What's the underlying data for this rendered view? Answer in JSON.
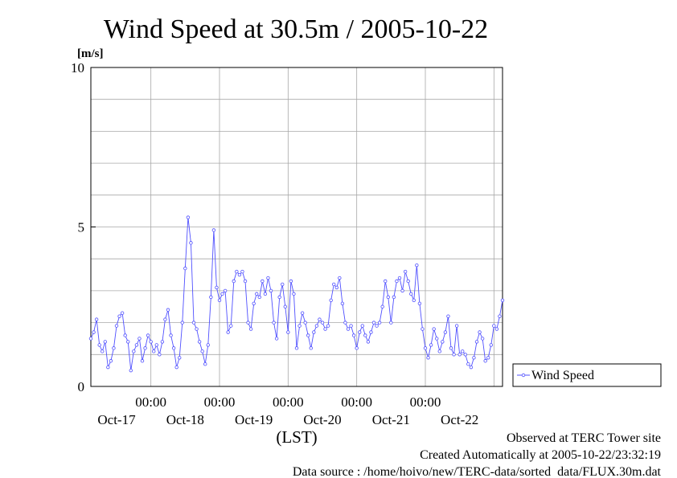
{
  "chart_data": {
    "type": "line",
    "title": "Wind Speed at 30.5m / 2005-10-22",
    "ylabel": "[m/s]",
    "xlabel": "(LST)",
    "ylim": [
      0,
      10
    ],
    "yticks": [
      "0",
      "5",
      "10"
    ],
    "xticks_time": [
      "00:00",
      "00:00",
      "00:00",
      "00:00",
      "00:00"
    ],
    "xticks_date": [
      "Oct-17",
      "Oct-18",
      "Oct-19",
      "Oct-20",
      "Oct-21",
      "Oct-22"
    ],
    "x_unit": "hours (LST)",
    "x_range_hours": [
      0,
      144
    ],
    "grid": true,
    "legend_position": "right",
    "series": [
      {
        "name": "Wind Speed",
        "color": "#5050ff",
        "x": [
          0,
          1,
          2,
          3,
          4,
          5,
          6,
          7,
          8,
          9,
          10,
          11,
          12,
          13,
          14,
          15,
          16,
          17,
          18,
          19,
          20,
          21,
          22,
          23,
          24,
          25,
          26,
          27,
          28,
          29,
          30,
          31,
          32,
          33,
          34,
          35,
          36,
          37,
          38,
          39,
          40,
          41,
          42,
          43,
          44,
          45,
          46,
          47,
          48,
          49,
          50,
          51,
          52,
          53,
          54,
          55,
          56,
          57,
          58,
          59,
          60,
          61,
          62,
          63,
          64,
          65,
          66,
          67,
          68,
          69,
          70,
          71,
          72,
          73,
          74,
          75,
          76,
          77,
          78,
          79,
          80,
          81,
          82,
          83,
          84,
          85,
          86,
          87,
          88,
          89,
          90,
          91,
          92,
          93,
          94,
          95,
          96,
          97,
          98,
          99,
          100,
          101,
          102,
          103,
          104,
          105,
          106,
          107,
          108,
          109,
          110,
          111,
          112,
          113,
          114,
          115,
          116,
          117,
          118,
          119,
          120,
          121,
          122,
          123,
          124,
          125,
          126,
          127,
          128,
          129,
          130,
          131,
          132,
          133,
          134,
          135,
          136,
          137,
          138,
          139,
          140,
          141,
          142,
          143,
          144
        ],
        "values": [
          1.5,
          1.7,
          2.1,
          1.3,
          1.1,
          1.4,
          0.6,
          0.8,
          1.2,
          1.9,
          2.2,
          2.3,
          1.6,
          1.4,
          0.5,
          1.1,
          1.3,
          1.5,
          0.8,
          1.2,
          1.6,
          1.4,
          1.1,
          1.3,
          1.0,
          1.4,
          2.1,
          2.4,
          1.6,
          1.2,
          0.6,
          0.9,
          2.0,
          3.7,
          5.3,
          4.5,
          2.0,
          1.8,
          1.4,
          1.1,
          0.7,
          1.3,
          2.8,
          4.9,
          3.1,
          2.7,
          2.9,
          3.0,
          1.7,
          1.9,
          3.3,
          3.6,
          3.5,
          3.6,
          3.3,
          2.0,
          1.8,
          2.6,
          2.9,
          2.8,
          3.3,
          2.9,
          3.4,
          3.0,
          2.0,
          1.5,
          2.8,
          3.2,
          2.5,
          1.7,
          3.3,
          2.9,
          1.2,
          1.9,
          2.3,
          2.0,
          1.6,
          1.2,
          1.7,
          1.9,
          2.1,
          2.0,
          1.8,
          1.9,
          2.7,
          3.2,
          3.1,
          3.4,
          2.6,
          2.0,
          1.8,
          1.9,
          1.6,
          1.2,
          1.7,
          1.9,
          1.6,
          1.4,
          1.7,
          2.0,
          1.9,
          2.0,
          2.5,
          3.3,
          2.8,
          2.0,
          2.8,
          3.3,
          3.4,
          3.0,
          3.6,
          3.3,
          2.9,
          2.7,
          3.8,
          2.6,
          1.8,
          1.2,
          0.9,
          1.3,
          1.8,
          1.5,
          1.1,
          1.4,
          1.7,
          2.2,
          1.2,
          1.0,
          1.9,
          1.0,
          1.1,
          1.0,
          0.7,
          0.6,
          0.9,
          1.4,
          1.7,
          1.5,
          0.8,
          0.9,
          1.3,
          1.9,
          1.8,
          2.2,
          2.7
        ]
      }
    ]
  },
  "footer": {
    "site": "Observed at TERC Tower site",
    "created": "Created Automatically at 2005-10-22/23:32:19",
    "source": "Data source : /home/hoivo/new/TERC-data/sorted  data/FLUX.30m.dat"
  }
}
